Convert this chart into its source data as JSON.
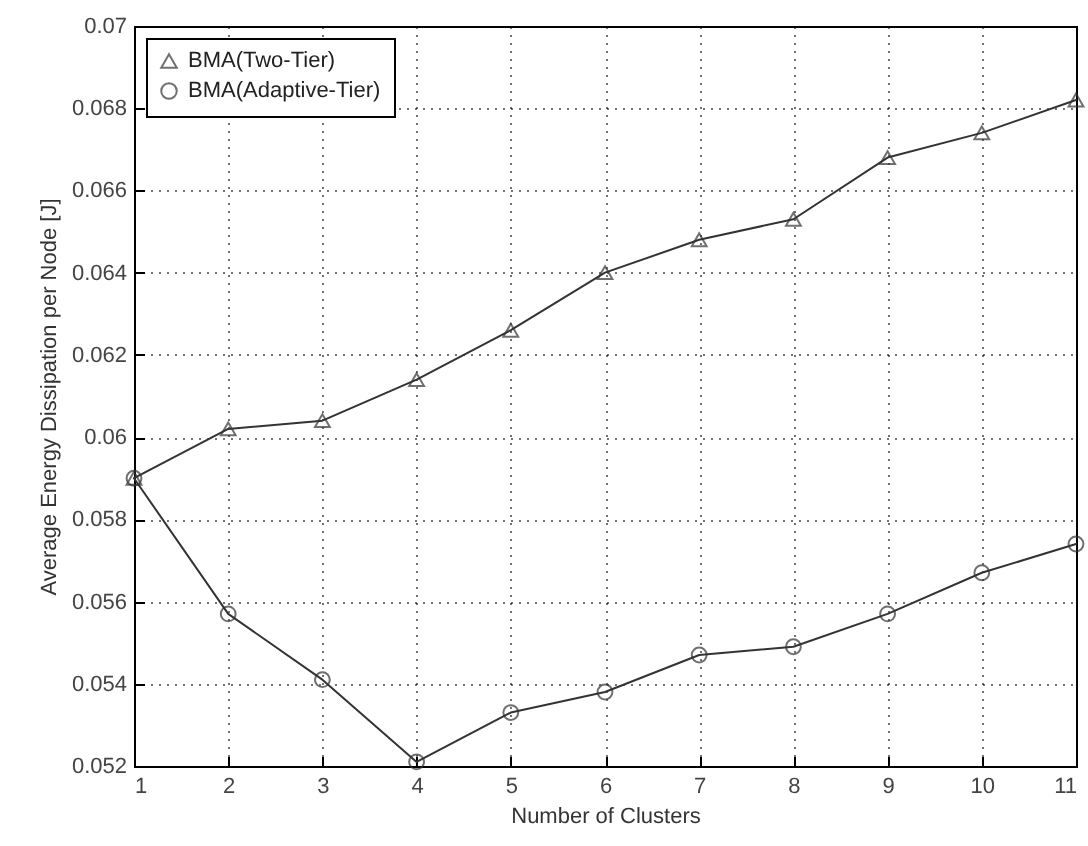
{
  "chart_data": {
    "type": "line",
    "xlabel": "Number of Clusters",
    "ylabel": "Average Energy Dissipation per Node [J]",
    "x": [
      1,
      2,
      3,
      4,
      5,
      6,
      7,
      8,
      9,
      10,
      11
    ],
    "series": [
      {
        "name": "BMA(Two-Tier)",
        "color": "#333333",
        "marker": "triangle",
        "values": [
          0.059,
          0.0602,
          0.0604,
          0.0614,
          0.0626,
          0.064,
          0.0648,
          0.0653,
          0.0668,
          0.0674,
          0.0682
        ]
      },
      {
        "name": "BMA(Adaptive-Tier)",
        "color": "#333333",
        "marker": "circle",
        "values": [
          0.059,
          0.0557,
          0.0541,
          0.0521,
          0.0533,
          0.0538,
          0.0547,
          0.0549,
          0.0557,
          0.0567,
          0.0574
        ]
      }
    ],
    "xlim": [
      1,
      11
    ],
    "xticks": [
      1,
      2,
      3,
      4,
      5,
      6,
      7,
      8,
      9,
      10,
      11
    ],
    "ylim": [
      0.052,
      0.07
    ],
    "yticks": [
      0.052,
      0.054,
      0.056,
      0.058,
      0.06,
      0.062,
      0.064,
      0.066,
      0.068,
      0.07
    ],
    "grid": true,
    "legend": "top left",
    "line_style": "solid"
  }
}
